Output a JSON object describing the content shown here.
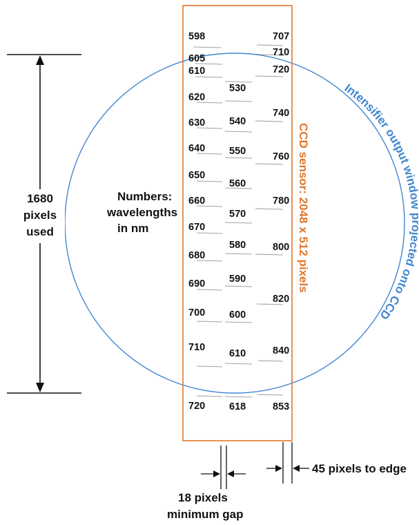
{
  "colors": {
    "sensor": "#E0762A",
    "circle": "#3F86D0",
    "ink": "#111111",
    "spectral_line": "#555555"
  },
  "labels": {
    "sensor": "CCD sensor: 2048 x 512 pixels",
    "circle": "Intensifier output window projected onto CCD",
    "numbers_note": [
      "Numbers:",
      "wavelengths",
      "in nm"
    ],
    "pixels_used": [
      "1680",
      "pixels",
      "used"
    ],
    "min_gap": [
      "18 pixels",
      "minimum gap"
    ],
    "edge_gap": "45 pixels to edge"
  },
  "columns": {
    "left": [
      "598",
      "605",
      "610",
      "620",
      "630",
      "640",
      "650",
      "660",
      "670",
      "680",
      "690",
      "700",
      "710",
      "720"
    ],
    "middle": [
      "530",
      "540",
      "550",
      "560",
      "570",
      "580",
      "590",
      "600",
      "610",
      "618"
    ],
    "right": [
      "707",
      "710",
      "720",
      "740",
      "760",
      "780",
      "800",
      "820",
      "840",
      "853"
    ]
  }
}
